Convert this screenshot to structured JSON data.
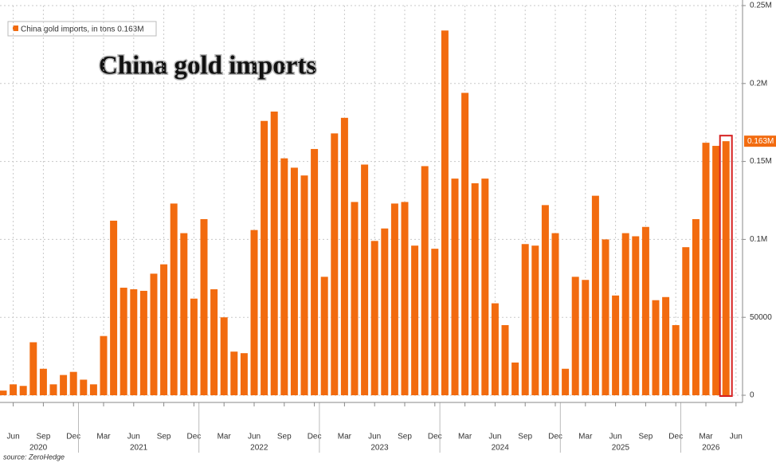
{
  "chart_data": {
    "type": "bar",
    "title": "China gold imports",
    "source": "source: ZeroHedge",
    "series": [
      {
        "name": "China gold imports, in tons",
        "color": "#f26b0f",
        "values": [
          3000,
          7000,
          6000,
          34000,
          17000,
          7000,
          13000,
          15000,
          10000,
          7000,
          38000,
          112000,
          69000,
          68000,
          67000,
          78000,
          84000,
          123000,
          104000,
          62000,
          113000,
          68000,
          50000,
          28000,
          27000,
          106000,
          176000,
          182000,
          152000,
          146000,
          141000,
          158000,
          76000,
          168000,
          178000,
          124000,
          148000,
          99000,
          107000,
          123000,
          124000,
          96000,
          147000,
          94000,
          234000,
          139000,
          194000,
          136000,
          139000,
          59000,
          45000,
          21000,
          97000,
          96000,
          122000,
          104000,
          17000,
          76000,
          74000,
          128000,
          100000,
          64000,
          104000,
          102000,
          108000,
          61000,
          63000,
          45000,
          95000,
          113000,
          162000,
          160000,
          163000,
          null
        ],
        "value_labels": [
          null,
          null,
          null,
          null,
          null,
          null,
          null,
          null,
          null,
          null,
          null,
          null,
          null,
          null,
          null,
          null,
          null,
          null,
          null,
          null,
          null,
          null,
          null,
          null,
          null,
          null,
          null,
          null,
          null,
          null,
          null,
          null,
          null,
          null,
          null,
          null,
          null,
          null,
          null,
          null,
          null,
          null,
          null,
          null,
          null,
          null,
          null,
          null,
          null,
          null,
          null,
          null,
          null,
          null,
          null,
          null,
          null,
          null,
          null,
          null,
          null,
          null,
          null,
          null,
          null,
          null,
          null,
          null,
          null,
          null,
          null,
          null,
          "0.163M",
          null
        ]
      }
    ],
    "categories": [
      null,
      "Jun",
      null,
      null,
      "Sep",
      null,
      null,
      "Dec",
      null,
      null,
      "Mar",
      null,
      null,
      "Jun",
      null,
      null,
      "Sep",
      null,
      null,
      "Dec",
      null,
      null,
      "Mar",
      null,
      null,
      "Jun",
      null,
      null,
      "Sep",
      null,
      null,
      "Dec",
      null,
      null,
      "Mar",
      null,
      null,
      "Jun",
      null,
      null,
      "Sep",
      null,
      null,
      "Dec",
      null,
      null,
      "Mar",
      null,
      null,
      "Jun",
      null,
      null,
      "Sep",
      null,
      null,
      "Dec",
      null,
      null,
      "Mar",
      null,
      null,
      "Jun",
      null,
      null,
      "Sep",
      null,
      null,
      "Dec",
      null,
      null,
      "Mar",
      null,
      null,
      "Jun"
    ],
    "years": [
      "2020",
      "2021",
      "2022",
      "2023",
      "2024",
      "2025",
      "2026"
    ],
    "ylim": [
      0,
      250000
    ],
    "yticks": [
      0,
      50000,
      {
        "value": 100000,
        "label": "0.1M"
      },
      {
        "value": 150000,
        "label": "0.15M"
      },
      {
        "value": 200000,
        "label": "0.2M"
      },
      {
        "value": 250000,
        "label": "0.25M"
      }
    ],
    "grid": true
  }
}
